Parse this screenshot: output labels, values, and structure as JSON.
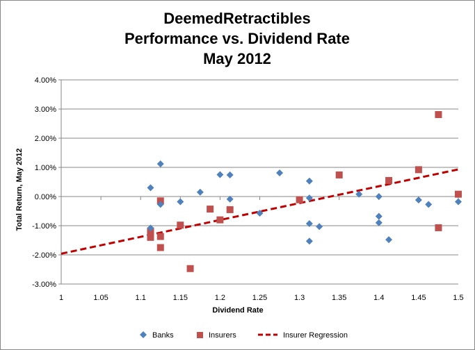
{
  "chart_data": {
    "type": "scatter",
    "title": [
      "DeemedRetractibles",
      "Performance vs. Dividend Rate",
      "May 2012"
    ],
    "xlabel": "Dividend Rate",
    "ylabel": "Total Return, May 2012",
    "xlim": [
      1,
      1.5
    ],
    "ylim": [
      -3,
      4
    ],
    "x_ticks": [
      1,
      1.05,
      1.1,
      1.15,
      1.2,
      1.25,
      1.3,
      1.35,
      1.4,
      1.45,
      1.5
    ],
    "x_tick_labels": [
      "1",
      "1.05",
      "1.1",
      "1.15",
      "1.2",
      "1.25",
      "1.3",
      "1.35",
      "1.4",
      "1.45",
      "1.5"
    ],
    "y_ticks": [
      -3,
      -2,
      -1,
      0,
      1,
      2,
      3,
      4
    ],
    "y_tick_labels": [
      "-3.00%",
      "-2.00%",
      "-1.00%",
      "0.00%",
      "1.00%",
      "2.00%",
      "3.00%",
      "4.00%"
    ],
    "grid": "horizontal",
    "legend_position": "bottom",
    "series": [
      {
        "name": "Banks",
        "marker": "diamond",
        "color": "#4f81bd",
        "points": [
          {
            "x": 1.1125,
            "y": 0.3
          },
          {
            "x": 1.1125,
            "y": -1.08
          },
          {
            "x": 1.125,
            "y": 1.12
          },
          {
            "x": 1.125,
            "y": -0.27
          },
          {
            "x": 1.15,
            "y": -0.18
          },
          {
            "x": 1.175,
            "y": 0.15
          },
          {
            "x": 1.2,
            "y": 0.75
          },
          {
            "x": 1.2125,
            "y": 0.74
          },
          {
            "x": 1.2125,
            "y": -0.09
          },
          {
            "x": 1.25,
            "y": -0.57
          },
          {
            "x": 1.275,
            "y": 0.81
          },
          {
            "x": 1.3125,
            "y": 0.53
          },
          {
            "x": 1.3125,
            "y": -0.05
          },
          {
            "x": 1.3125,
            "y": -0.93
          },
          {
            "x": 1.3125,
            "y": -1.53
          },
          {
            "x": 1.325,
            "y": -1.03
          },
          {
            "x": 1.375,
            "y": 0.08
          },
          {
            "x": 1.4,
            "y": 0.0
          },
          {
            "x": 1.4,
            "y": -0.68
          },
          {
            "x": 1.4,
            "y": -0.9
          },
          {
            "x": 1.4125,
            "y": -1.48
          },
          {
            "x": 1.45,
            "y": -0.12
          },
          {
            "x": 1.4625,
            "y": -0.27
          },
          {
            "x": 1.5,
            "y": -0.18
          }
        ]
      },
      {
        "name": "Insurers",
        "marker": "square",
        "color": "#c0504d",
        "points": [
          {
            "x": 1.1125,
            "y": -1.18
          },
          {
            "x": 1.1125,
            "y": -1.27
          },
          {
            "x": 1.1125,
            "y": -1.4
          },
          {
            "x": 1.125,
            "y": -0.15
          },
          {
            "x": 1.125,
            "y": -1.37
          },
          {
            "x": 1.125,
            "y": -1.75
          },
          {
            "x": 1.15,
            "y": -0.98
          },
          {
            "x": 1.1625,
            "y": -2.47
          },
          {
            "x": 1.1875,
            "y": -0.43
          },
          {
            "x": 1.2,
            "y": -0.8
          },
          {
            "x": 1.2125,
            "y": -0.45
          },
          {
            "x": 1.3,
            "y": -0.11
          },
          {
            "x": 1.35,
            "y": 0.74
          },
          {
            "x": 1.4125,
            "y": 0.55
          },
          {
            "x": 1.45,
            "y": 0.92
          },
          {
            "x": 1.475,
            "y": 2.81
          },
          {
            "x": 1.475,
            "y": -1.07
          },
          {
            "x": 1.5,
            "y": 0.08
          }
        ]
      },
      {
        "name": "Insurer Regression",
        "type": "line",
        "style": "dashed",
        "color": "#c00000",
        "x": [
          1,
          1.5
        ],
        "y": [
          -1.96,
          0.93
        ]
      }
    ]
  }
}
